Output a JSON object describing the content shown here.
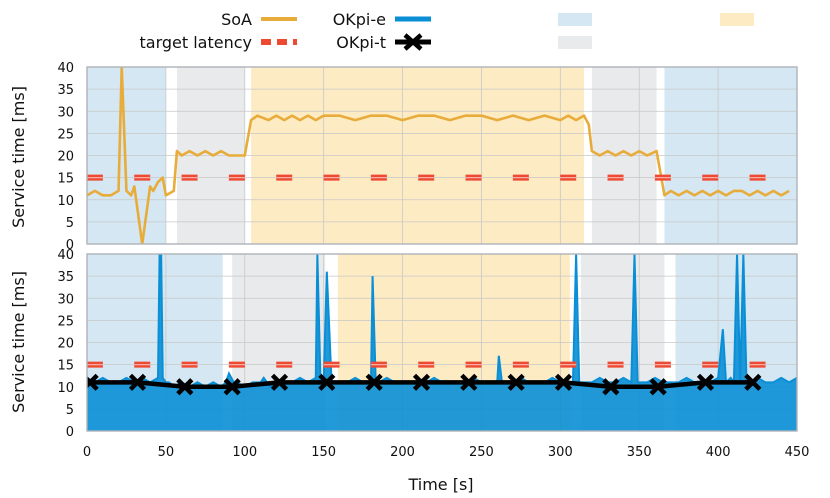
{
  "chart_data": [
    {
      "type": "line",
      "panel": "top",
      "xlabel": "",
      "ylabel": "Service time [ms]",
      "xlim": [
        0,
        450
      ],
      "ylim": [
        0,
        40
      ],
      "xticks": [
        0,
        50,
        100,
        150,
        200,
        250,
        300,
        350,
        400,
        450
      ],
      "yticks": [
        0,
        5,
        10,
        15,
        20,
        25,
        30,
        35,
        40
      ],
      "grid": true,
      "phases": [
        {
          "start": 0,
          "end": 50,
          "kind": "blue"
        },
        {
          "start": 57,
          "end": 100,
          "kind": "gray"
        },
        {
          "start": 104,
          "end": 315,
          "kind": "yellow"
        },
        {
          "start": 320,
          "end": 361,
          "kind": "gray"
        },
        {
          "start": 366,
          "end": 450,
          "kind": "blue"
        }
      ],
      "series": [
        {
          "name": "SoA",
          "color": "#E8AC3A",
          "x": [
            0,
            5,
            10,
            15,
            20,
            22,
            25,
            28,
            30,
            35,
            40,
            42,
            45,
            48,
            50,
            55,
            57,
            60,
            65,
            70,
            75,
            80,
            85,
            90,
            95,
            100,
            104,
            108,
            115,
            120,
            125,
            130,
            135,
            140,
            145,
            150,
            160,
            170,
            180,
            190,
            200,
            210,
            220,
            230,
            240,
            250,
            260,
            270,
            280,
            290,
            300,
            305,
            310,
            315,
            318,
            320,
            325,
            330,
            335,
            340,
            345,
            350,
            355,
            361,
            366,
            370,
            375,
            380,
            385,
            390,
            395,
            400,
            405,
            410,
            415,
            420,
            425,
            430,
            435,
            440,
            445
          ],
          "values": [
            11,
            12,
            11,
            11,
            12,
            40,
            12,
            11,
            13,
            0,
            13,
            12,
            14,
            15,
            11,
            12,
            21,
            20,
            21,
            20,
            21,
            20,
            21,
            20,
            20,
            20,
            28,
            29,
            28,
            29,
            28,
            29,
            28,
            29,
            28,
            29,
            29,
            28,
            29,
            29,
            28,
            29,
            29,
            28,
            29,
            29,
            28,
            29,
            28,
            29,
            28,
            29,
            28,
            29,
            27,
            21,
            20,
            21,
            20,
            21,
            20,
            21,
            20,
            21,
            11,
            12,
            11,
            12,
            11,
            12,
            11,
            12,
            11,
            12,
            12,
            11,
            12,
            11,
            12,
            11,
            12
          ]
        },
        {
          "name": "target latency",
          "color": "#EE4A33",
          "x": [
            5,
            35,
            65,
            95,
            125,
            155,
            185,
            215,
            245,
            275,
            305,
            335,
            365,
            395,
            425
          ],
          "values": [
            15,
            15,
            15,
            15,
            15,
            15,
            15,
            15,
            15,
            15,
            15,
            15,
            15,
            15,
            15
          ]
        }
      ]
    },
    {
      "type": "line",
      "panel": "bottom",
      "xlabel": "Time [s]",
      "ylabel": "Service time [ms]",
      "xlim": [
        0,
        450
      ],
      "ylim": [
        0,
        40
      ],
      "xticks": [
        0,
        50,
        100,
        150,
        200,
        250,
        300,
        350,
        400,
        450
      ],
      "yticks": [
        0,
        5,
        10,
        15,
        20,
        25,
        30,
        35,
        40
      ],
      "grid": true,
      "phases": [
        {
          "start": 0,
          "end": 86,
          "kind": "blue"
        },
        {
          "start": 92,
          "end": 151,
          "kind": "gray"
        },
        {
          "start": 159,
          "end": 306,
          "kind": "yellow"
        },
        {
          "start": 313,
          "end": 366,
          "kind": "gray"
        },
        {
          "start": 373,
          "end": 450,
          "kind": "blue"
        }
      ],
      "series": [
        {
          "name": "OKpi-e",
          "color": "#0A8FD6",
          "x": [
            0,
            5,
            10,
            15,
            20,
            25,
            30,
            35,
            40,
            45,
            46,
            47,
            48,
            50,
            52,
            55,
            60,
            65,
            70,
            75,
            80,
            85,
            88,
            90,
            93,
            95,
            100,
            105,
            110,
            112,
            114,
            116,
            120,
            125,
            130,
            135,
            140,
            145,
            146,
            148,
            150,
            152,
            155,
            160,
            165,
            170,
            175,
            180,
            181,
            183,
            185,
            190,
            195,
            200,
            205,
            210,
            215,
            220,
            225,
            230,
            235,
            240,
            245,
            250,
            255,
            260,
            261,
            263,
            265,
            270,
            275,
            280,
            285,
            290,
            295,
            300,
            305,
            308,
            310,
            312,
            315,
            320,
            325,
            330,
            335,
            340,
            345,
            347,
            349,
            351,
            355,
            360,
            365,
            370,
            375,
            380,
            385,
            390,
            395,
            400,
            403,
            405,
            408,
            410,
            412,
            414,
            416,
            418,
            420,
            425,
            430,
            435,
            440,
            445,
            450
          ],
          "values": [
            12,
            11,
            12,
            11,
            11,
            12,
            11,
            12,
            11,
            12,
            40,
            40,
            12,
            11,
            11,
            10,
            11,
            10,
            11,
            10,
            11,
            10,
            11,
            13,
            11,
            11,
            10,
            11,
            11,
            12,
            11,
            10,
            11,
            11,
            11,
            12,
            11,
            12,
            40,
            11,
            11,
            36,
            11,
            11,
            11,
            12,
            11,
            11,
            35,
            11,
            11,
            12,
            11,
            11,
            11,
            11,
            11,
            12,
            11,
            11,
            11,
            11,
            12,
            11,
            11,
            11,
            17,
            11,
            11,
            11,
            12,
            11,
            11,
            11,
            12,
            11,
            11,
            11,
            40,
            11,
            11,
            11,
            12,
            11,
            11,
            12,
            11,
            40,
            11,
            11,
            11,
            12,
            11,
            11,
            11,
            12,
            11,
            11,
            11,
            12,
            23,
            11,
            12,
            11,
            40,
            11,
            40,
            11,
            11,
            12,
            11,
            11,
            12,
            11,
            12
          ]
        },
        {
          "name": "OKpi-t",
          "color": "#000000",
          "x": [
            2,
            32,
            62,
            92,
            122,
            152,
            182,
            212,
            242,
            272,
            302,
            332,
            362,
            392,
            422
          ],
          "values": [
            11,
            11,
            10,
            10,
            11,
            11,
            11,
            11,
            11,
            11,
            11,
            10,
            10,
            11,
            11
          ]
        },
        {
          "name": "target latency",
          "color": "#EE4A33",
          "x": [
            5,
            35,
            65,
            95,
            125,
            155,
            185,
            215,
            245,
            275,
            305,
            335,
            365,
            395,
            425
          ],
          "values": [
            15,
            15,
            15,
            15,
            15,
            15,
            15,
            15,
            15,
            15,
            15,
            15,
            15,
            15,
            15
          ]
        }
      ]
    }
  ],
  "legend": {
    "soa": "SoA",
    "target": "target latency",
    "okpie": "OKpi-e",
    "okpit": "OKpi-t"
  },
  "colors": {
    "blue_phase": "#D4E7F2",
    "gray_phase": "#E9EAEC",
    "yellow_phase": "#FDEBC4",
    "grid": "#C8C8C8"
  }
}
